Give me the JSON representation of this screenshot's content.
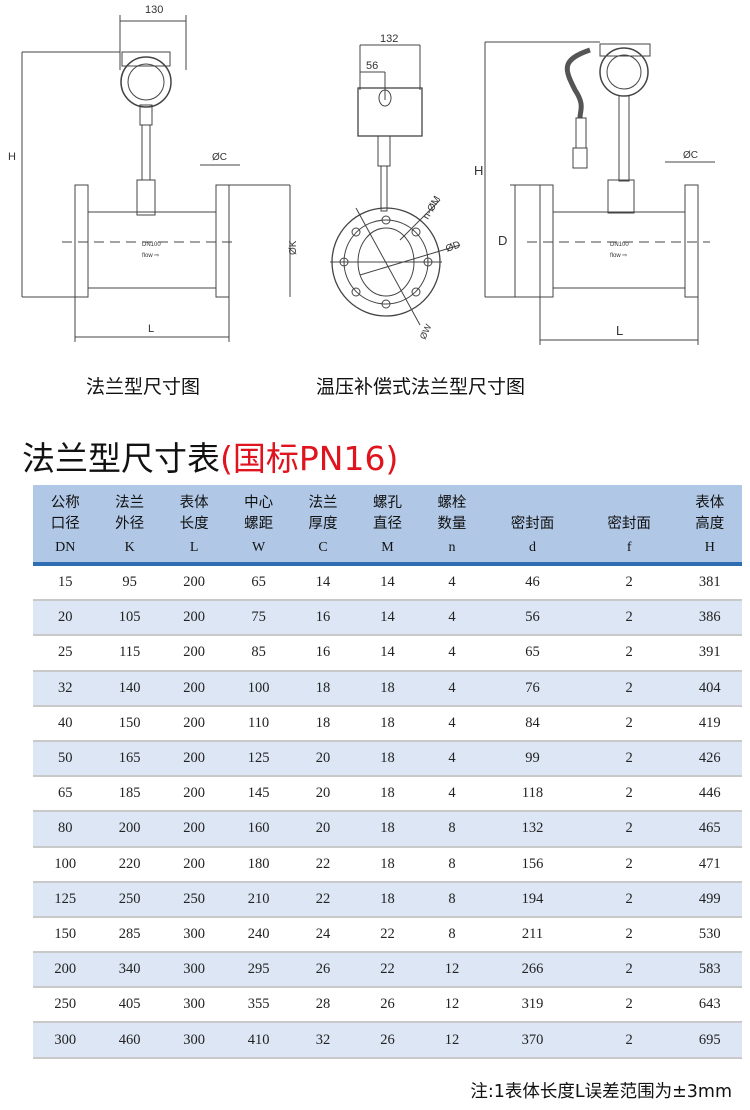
{
  "drawings": {
    "left": {
      "width_dim": "130",
      "height_dim": "H",
      "flange_thk": "ØC",
      "flange_dia": "ØK",
      "length": "L",
      "tag": "DN100",
      "flow": "flow ⇨"
    },
    "middle": {
      "width_dim": "132",
      "offset_dim": "56",
      "holes": "n-ØM",
      "seal_dia": "ØD",
      "bolt_circle": "ØW"
    },
    "right": {
      "height_dim": "H",
      "flange_thk": "ØC",
      "body_dia": "D",
      "length": "L",
      "tag": "DN100",
      "flow": "flow ⇨"
    }
  },
  "captions": {
    "left": "法兰型尺寸图",
    "right": "温压补偿式法兰型尺寸图"
  },
  "title": {
    "main": "法兰型尺寸表",
    "highlight": "(国标PN16)",
    "highlight_color": "#e0141e"
  },
  "table": {
    "header_color": "#b0c8e6",
    "stripe_color": "#dce6f4",
    "columns": [
      {
        "cn1": "公称",
        "cn2": "口径",
        "sym": "DN"
      },
      {
        "cn1": "法兰",
        "cn2": "外径",
        "sym": "K"
      },
      {
        "cn1": "表体",
        "cn2": "长度",
        "sym": "L"
      },
      {
        "cn1": "中心",
        "cn2": "螺距",
        "sym": "W"
      },
      {
        "cn1": "法兰",
        "cn2": "厚度",
        "sym": "C"
      },
      {
        "cn1": "螺孔",
        "cn2": "直径",
        "sym": "M"
      },
      {
        "cn1": "螺栓",
        "cn2": "数量",
        "sym": "n"
      },
      {
        "cn1": "",
        "cn2": "密封面",
        "sym": "d"
      },
      {
        "cn1": "",
        "cn2": "密封面",
        "sym": "f"
      },
      {
        "cn1": "表体",
        "cn2": "高度",
        "sym": "H"
      }
    ],
    "rows": [
      [
        "15",
        "95",
        "200",
        "65",
        "14",
        "14",
        "4",
        "46",
        "2",
        "381"
      ],
      [
        "20",
        "105",
        "200",
        "75",
        "16",
        "14",
        "4",
        "56",
        "2",
        "386"
      ],
      [
        "25",
        "115",
        "200",
        "85",
        "16",
        "14",
        "4",
        "65",
        "2",
        "391"
      ],
      [
        "32",
        "140",
        "200",
        "100",
        "18",
        "18",
        "4",
        "76",
        "2",
        "404"
      ],
      [
        "40",
        "150",
        "200",
        "110",
        "18",
        "18",
        "4",
        "84",
        "2",
        "419"
      ],
      [
        "50",
        "165",
        "200",
        "125",
        "20",
        "18",
        "4",
        "99",
        "2",
        "426"
      ],
      [
        "65",
        "185",
        "200",
        "145",
        "20",
        "18",
        "4",
        "118",
        "2",
        "446"
      ],
      [
        "80",
        "200",
        "200",
        "160",
        "20",
        "18",
        "8",
        "132",
        "2",
        "465"
      ],
      [
        "100",
        "220",
        "200",
        "180",
        "22",
        "18",
        "8",
        "156",
        "2",
        "471"
      ],
      [
        "125",
        "250",
        "250",
        "210",
        "22",
        "18",
        "8",
        "194",
        "2",
        "499"
      ],
      [
        "150",
        "285",
        "300",
        "240",
        "24",
        "22",
        "8",
        "211",
        "2",
        "530"
      ],
      [
        "200",
        "340",
        "300",
        "295",
        "26",
        "22",
        "12",
        "266",
        "2",
        "583"
      ],
      [
        "250",
        "405",
        "300",
        "355",
        "28",
        "26",
        "12",
        "319",
        "2",
        "643"
      ],
      [
        "300",
        "460",
        "300",
        "410",
        "32",
        "26",
        "12",
        "370",
        "2",
        "695"
      ]
    ]
  },
  "note": "注:1表体长度L误差范围为±3mm"
}
